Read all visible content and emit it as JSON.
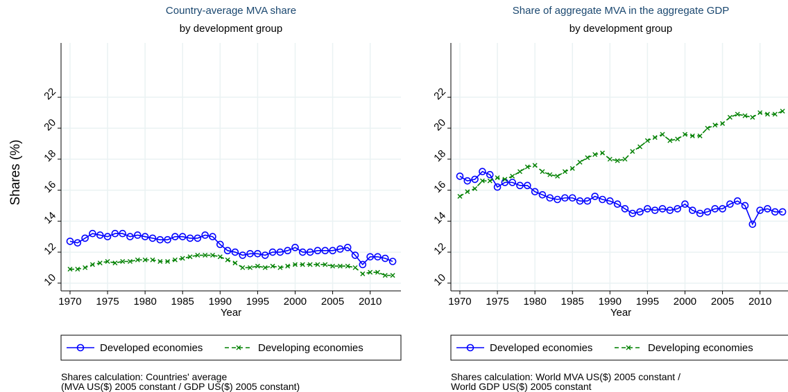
{
  "chart_data": [
    {
      "type": "line",
      "title": "Country-average MVA share",
      "subtitle": "by development group",
      "x_label": "Year",
      "y_label": "Shares (%)",
      "x": [
        1970,
        1971,
        1972,
        1973,
        1974,
        1975,
        1976,
        1977,
        1978,
        1979,
        1980,
        1981,
        1982,
        1983,
        1984,
        1985,
        1986,
        1987,
        1988,
        1989,
        1990,
        1991,
        1992,
        1993,
        1994,
        1995,
        1996,
        1997,
        1998,
        1999,
        2000,
        2001,
        2002,
        2003,
        2004,
        2005,
        2006,
        2007,
        2008,
        2009,
        2010,
        2011,
        2012,
        2013
      ],
      "series": [
        {
          "name": "Developed economies",
          "color": "#0000ff",
          "marker": "circle",
          "values": [
            12.7,
            12.6,
            12.9,
            13.2,
            13.1,
            13.0,
            13.2,
            13.2,
            13.0,
            13.1,
            13.0,
            12.9,
            12.8,
            12.8,
            13.0,
            13.0,
            12.9,
            12.9,
            13.1,
            13.0,
            12.5,
            12.1,
            12.0,
            11.8,
            11.9,
            11.9,
            11.8,
            12.0,
            12.0,
            12.1,
            12.3,
            12.0,
            12.0,
            12.1,
            12.1,
            12.1,
            12.2,
            12.3,
            11.8,
            11.2,
            11.7,
            11.7,
            11.6,
            11.4
          ]
        },
        {
          "name": "Developing economies",
          "color": "#008000",
          "marker": "x",
          "values": [
            10.9,
            10.9,
            11.0,
            11.2,
            11.3,
            11.4,
            11.3,
            11.4,
            11.4,
            11.5,
            11.5,
            11.5,
            11.4,
            11.4,
            11.5,
            11.6,
            11.7,
            11.8,
            11.8,
            11.8,
            11.7,
            11.5,
            11.3,
            11.0,
            11.0,
            11.1,
            11.0,
            11.1,
            11.0,
            11.1,
            11.2,
            11.2,
            11.2,
            11.2,
            11.2,
            11.1,
            11.1,
            11.1,
            11.0,
            10.6,
            10.7,
            10.7,
            10.5,
            10.5
          ]
        }
      ],
      "xlim": [
        1968.8,
        2014.1
      ],
      "xticks": [
        1970,
        1975,
        1980,
        1985,
        1990,
        1995,
        2000,
        2005,
        2010
      ],
      "ylim": [
        9.5,
        25.5
      ],
      "yticks": [
        10,
        12,
        14,
        16,
        18,
        20,
        22
      ],
      "grid": true,
      "notes": [
        "Shares calculation: Countries' average",
        "(MVA US($) 2005 constant / GDP US($) 2005 constant)"
      ]
    },
    {
      "type": "line",
      "title": "Share of aggregate MVA in the aggregate GDP",
      "subtitle": "by development group",
      "x_label": "Year",
      "x": [
        1970,
        1971,
        1972,
        1973,
        1974,
        1975,
        1976,
        1977,
        1978,
        1979,
        1980,
        1981,
        1982,
        1983,
        1984,
        1985,
        1986,
        1987,
        1988,
        1989,
        1990,
        1991,
        1992,
        1993,
        1994,
        1995,
        1996,
        1997,
        1998,
        1999,
        2000,
        2001,
        2002,
        2003,
        2004,
        2005,
        2006,
        2007,
        2008,
        2009,
        2010,
        2011,
        2012,
        2013
      ],
      "series": [
        {
          "name": "Developed economies",
          "color": "#0000ff",
          "marker": "circle",
          "values": [
            16.9,
            16.6,
            16.7,
            17.2,
            17.0,
            16.2,
            16.5,
            16.5,
            16.3,
            16.3,
            15.9,
            15.7,
            15.5,
            15.4,
            15.5,
            15.5,
            15.3,
            15.3,
            15.6,
            15.4,
            15.3,
            15.1,
            14.8,
            14.5,
            14.6,
            14.8,
            14.7,
            14.8,
            14.7,
            14.8,
            15.1,
            14.7,
            14.5,
            14.6,
            14.8,
            14.8,
            15.1,
            15.3,
            15.0,
            13.8,
            14.7,
            14.8,
            14.6,
            14.6
          ]
        },
        {
          "name": "Developing economies",
          "color": "#008000",
          "marker": "x",
          "values": [
            15.6,
            15.9,
            16.1,
            16.6,
            16.6,
            16.8,
            16.7,
            16.9,
            17.2,
            17.5,
            17.6,
            17.2,
            17.0,
            16.9,
            17.2,
            17.4,
            17.8,
            18.1,
            18.3,
            18.4,
            18.0,
            17.9,
            18.0,
            18.5,
            18.8,
            19.2,
            19.4,
            19.6,
            19.2,
            19.3,
            19.6,
            19.5,
            19.5,
            20.0,
            20.2,
            20.3,
            20.7,
            20.9,
            20.8,
            20.7,
            21.0,
            20.9,
            20.9,
            21.1
          ]
        }
      ],
      "xlim": [
        1968.8,
        2014.1
      ],
      "xticks": [
        1970,
        1975,
        1980,
        1985,
        1990,
        1995,
        2000,
        2005,
        2010
      ],
      "ylim": [
        9.5,
        25.5
      ],
      "yticks": [
        10,
        12,
        14,
        16,
        18,
        20,
        22
      ],
      "grid": true,
      "notes": [
        "Shares calculation: World MVA US($) 2005 constant /",
        "World GDP US($) 2005 constant"
      ]
    }
  ]
}
